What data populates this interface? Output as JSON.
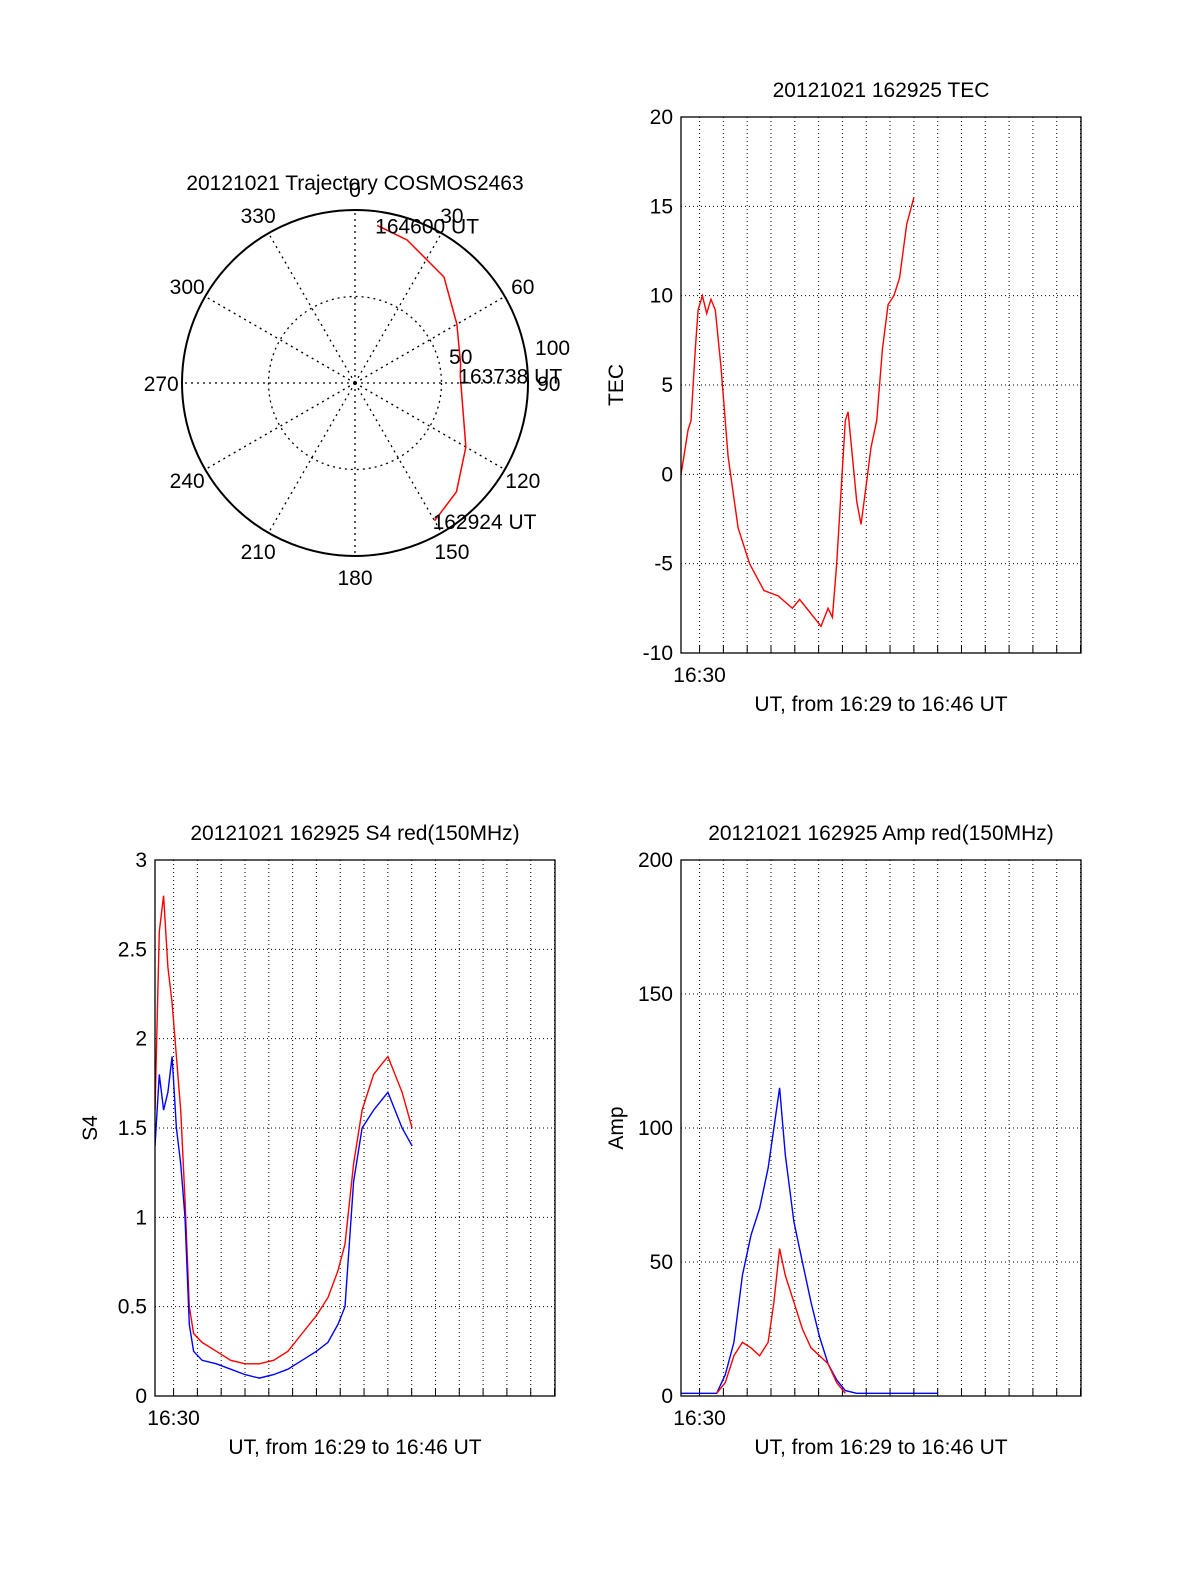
{
  "chart_data": [
    {
      "type": "polar",
      "title": "20121021 Trajectory COSMOS2463",
      "azimuth_labels": [
        "0",
        "30",
        "60",
        "90",
        "120",
        "150",
        "180",
        "210",
        "240",
        "270",
        "300",
        "330"
      ],
      "radial_labels": [
        "50",
        "100"
      ],
      "radial_range": [
        0,
        100
      ],
      "grid": true,
      "trajectory_color": "#ff0000",
      "trajectory": [
        {
          "az": 8,
          "zen": 92
        },
        {
          "az": 20,
          "zen": 88
        },
        {
          "az": 40,
          "zen": 80
        },
        {
          "az": 60,
          "zen": 68
        },
        {
          "az": 80,
          "zen": 62
        },
        {
          "az": 86,
          "zen": 61
        },
        {
          "az": 100,
          "zen": 63
        },
        {
          "az": 120,
          "zen": 74
        },
        {
          "az": 137,
          "zen": 86
        },
        {
          "az": 150,
          "zen": 92
        }
      ],
      "annotations": [
        {
          "text": "164600 UT",
          "az": 8,
          "zen": 92
        },
        {
          "text": "163738 UT",
          "az": 86,
          "zen": 61
        },
        {
          "text": "162924 UT",
          "az": 150,
          "zen": 92
        }
      ]
    },
    {
      "type": "line",
      "title": "20121021 162925 TEC",
      "xlabel": "UT, from 16:29 to 16:46 UT",
      "ylabel": "TEC",
      "xlim": [
        16.487,
        16.767
      ],
      "ylim": [
        -10,
        20
      ],
      "yticks": [
        -10,
        -5,
        0,
        5,
        10,
        15,
        20
      ],
      "xtick_label": "16:30",
      "grid": true,
      "series": [
        {
          "color": "#ff0000",
          "points": [
            [
              16.487,
              0
            ],
            [
              16.489,
              1
            ],
            [
              16.492,
              2.5
            ],
            [
              16.494,
              3
            ],
            [
              16.497,
              7
            ],
            [
              16.499,
              9.2
            ],
            [
              16.502,
              10
            ],
            [
              16.505,
              9
            ],
            [
              16.508,
              9.8
            ],
            [
              16.511,
              9.2
            ],
            [
              16.515,
              6
            ],
            [
              16.52,
              1
            ],
            [
              16.527,
              -3
            ],
            [
              16.535,
              -5
            ],
            [
              16.545,
              -6.5
            ],
            [
              16.555,
              -6.8
            ],
            [
              16.565,
              -7.5
            ],
            [
              16.57,
              -7
            ],
            [
              16.58,
              -8
            ],
            [
              16.585,
              -8.5
            ],
            [
              16.59,
              -7.5
            ],
            [
              16.593,
              -8
            ],
            [
              16.596,
              -5
            ],
            [
              16.599,
              -1
            ],
            [
              16.602,
              3
            ],
            [
              16.604,
              3.5
            ],
            [
              16.607,
              1
            ],
            [
              16.61,
              -1.5
            ],
            [
              16.613,
              -2.8
            ],
            [
              16.616,
              -1
            ],
            [
              16.62,
              1.5
            ],
            [
              16.624,
              3
            ],
            [
              16.628,
              7
            ],
            [
              16.632,
              9.5
            ],
            [
              16.636,
              10
            ],
            [
              16.64,
              11
            ],
            [
              16.645,
              14
            ],
            [
              16.65,
              15.5
            ]
          ]
        }
      ]
    },
    {
      "type": "line",
      "title": "20121021 162925 S4 red(150MHz)",
      "xlabel": "UT, from 16:29 to 16:46 UT",
      "ylabel": "S4",
      "xlim": [
        16.487,
        16.767
      ],
      "ylim": [
        0,
        3
      ],
      "yticks": [
        0,
        0.5,
        1,
        1.5,
        2,
        2.5,
        3
      ],
      "xtick_label": "16:30",
      "grid": true,
      "series": [
        {
          "color": "#ff0000",
          "points": [
            [
              16.487,
              1.6
            ],
            [
              16.49,
              2.6
            ],
            [
              16.493,
              2.8
            ],
            [
              16.496,
              2.4
            ],
            [
              16.499,
              2.2
            ],
            [
              16.502,
              1.9
            ],
            [
              16.505,
              1.6
            ],
            [
              16.508,
              1.1
            ],
            [
              16.511,
              0.5
            ],
            [
              16.514,
              0.35
            ],
            [
              16.52,
              0.3
            ],
            [
              16.53,
              0.25
            ],
            [
              16.54,
              0.2
            ],
            [
              16.55,
              0.18
            ],
            [
              16.56,
              0.18
            ],
            [
              16.57,
              0.2
            ],
            [
              16.58,
              0.25
            ],
            [
              16.59,
              0.35
            ],
            [
              16.6,
              0.45
            ],
            [
              16.608,
              0.55
            ],
            [
              16.615,
              0.7
            ],
            [
              16.62,
              0.85
            ],
            [
              16.626,
              1.3
            ],
            [
              16.632,
              1.6
            ],
            [
              16.64,
              1.8
            ],
            [
              16.65,
              1.9
            ],
            [
              16.66,
              1.7
            ],
            [
              16.667,
              1.5
            ]
          ]
        },
        {
          "color": "#0000ff",
          "points": [
            [
              16.487,
              1.4
            ],
            [
              16.49,
              1.8
            ],
            [
              16.493,
              1.6
            ],
            [
              16.496,
              1.7
            ],
            [
              16.499,
              1.9
            ],
            [
              16.502,
              1.5
            ],
            [
              16.505,
              1.3
            ],
            [
              16.508,
              1.0
            ],
            [
              16.511,
              0.4
            ],
            [
              16.514,
              0.25
            ],
            [
              16.52,
              0.2
            ],
            [
              16.53,
              0.18
            ],
            [
              16.54,
              0.15
            ],
            [
              16.55,
              0.12
            ],
            [
              16.56,
              0.1
            ],
            [
              16.57,
              0.12
            ],
            [
              16.58,
              0.15
            ],
            [
              16.59,
              0.2
            ],
            [
              16.6,
              0.25
            ],
            [
              16.608,
              0.3
            ],
            [
              16.615,
              0.4
            ],
            [
              16.62,
              0.5
            ],
            [
              16.626,
              1.2
            ],
            [
              16.632,
              1.5
            ],
            [
              16.64,
              1.6
            ],
            [
              16.65,
              1.7
            ],
            [
              16.66,
              1.5
            ],
            [
              16.667,
              1.4
            ]
          ]
        }
      ]
    },
    {
      "type": "line",
      "title": "20121021 162925 Amp red(150MHz)",
      "xlabel": "UT, from 16:29 to 16:46 UT",
      "ylabel": "Amp",
      "xlim": [
        16.487,
        16.767
      ],
      "ylim": [
        0,
        200
      ],
      "yticks": [
        0,
        50,
        100,
        150,
        200
      ],
      "xtick_label": "16:30",
      "grid": true,
      "series": [
        {
          "color": "#0000ff",
          "points": [
            [
              16.487,
              1
            ],
            [
              16.5,
              1
            ],
            [
              16.512,
              1
            ],
            [
              16.518,
              8
            ],
            [
              16.524,
              20
            ],
            [
              16.53,
              45
            ],
            [
              16.536,
              60
            ],
            [
              16.542,
              70
            ],
            [
              16.548,
              85
            ],
            [
              16.552,
              100
            ],
            [
              16.556,
              115
            ],
            [
              16.56,
              90
            ],
            [
              16.566,
              65
            ],
            [
              16.572,
              50
            ],
            [
              16.578,
              35
            ],
            [
              16.584,
              22
            ],
            [
              16.59,
              12
            ],
            [
              16.596,
              6
            ],
            [
              16.602,
              2
            ],
            [
              16.61,
              1
            ],
            [
              16.667,
              1
            ]
          ]
        },
        {
          "color": "#ff0000",
          "points": [
            [
              16.512,
              1
            ],
            [
              16.518,
              5
            ],
            [
              16.524,
              15
            ],
            [
              16.53,
              20
            ],
            [
              16.536,
              18
            ],
            [
              16.542,
              15
            ],
            [
              16.548,
              20
            ],
            [
              16.552,
              35
            ],
            [
              16.556,
              55
            ],
            [
              16.56,
              45
            ],
            [
              16.566,
              35
            ],
            [
              16.572,
              25
            ],
            [
              16.578,
              18
            ],
            [
              16.584,
              15
            ],
            [
              16.59,
              12
            ],
            [
              16.596,
              5
            ],
            [
              16.602,
              1
            ]
          ]
        }
      ]
    }
  ]
}
